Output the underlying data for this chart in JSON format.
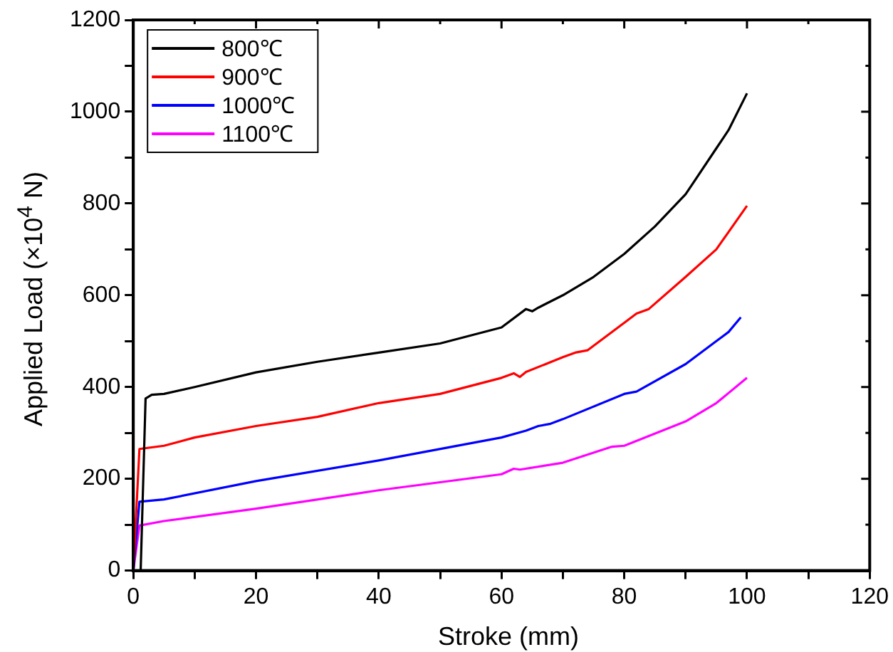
{
  "chart_data": {
    "type": "line",
    "xlabel": "Stroke (mm)",
    "ylabel": "Applied Load (×10$^{4}$ N)",
    "xlim": [
      0,
      120
    ],
    "ylim": [
      0,
      1200
    ],
    "xticks": [
      0,
      {
        "value": 10,
        "label": null
      },
      20,
      {
        "value": 30,
        "label": null
      },
      40,
      {
        "value": 50,
        "label": null
      },
      60,
      {
        "value": 70,
        "label": null
      },
      80,
      {
        "value": 90,
        "label": null
      },
      100,
      {
        "value": 110,
        "label": null
      },
      120
    ],
    "yticks": [
      0,
      {
        "value": 100,
        "label": null
      },
      200,
      {
        "value": 300,
        "label": null
      },
      400,
      {
        "value": 500,
        "label": null
      },
      600,
      {
        "value": 700,
        "label": null
      },
      800,
      {
        "value": 900,
        "label": null
      },
      1000,
      {
        "value": 1100,
        "label": null
      },
      1200
    ],
    "grid": false,
    "legend": "top left",
    "marker": "none",
    "line_style": "solid",
    "series": [
      {
        "name": "800℃",
        "color": "#000000",
        "x": [
          1.2,
          2,
          3,
          5,
          10,
          20,
          30,
          40,
          50,
          60,
          64,
          65,
          66,
          70,
          75,
          80,
          85,
          90,
          95,
          97,
          100
        ],
        "values": [
          0,
          375,
          383,
          385,
          400,
          432,
          455,
          475,
          495,
          530,
          570,
          565,
          573,
          600,
          640,
          690,
          750,
          820,
          920,
          960,
          1040
        ]
      },
      {
        "name": "900℃",
        "color": "#ff0000",
        "x": [
          0,
          1,
          5,
          10,
          20,
          30,
          40,
          50,
          60,
          62,
          63,
          64,
          70,
          72,
          74,
          80,
          82,
          84,
          90,
          95,
          100
        ],
        "values": [
          0,
          265,
          272,
          290,
          315,
          335,
          365,
          385,
          420,
          430,
          422,
          433,
          465,
          475,
          480,
          540,
          560,
          570,
          640,
          700,
          795
        ]
      },
      {
        "name": "1000℃",
        "color": "#0000ff",
        "x": [
          0,
          1,
          5,
          20,
          40,
          60,
          64,
          66,
          68,
          70,
          80,
          82,
          90,
          95,
          97,
          99
        ],
        "values": [
          0,
          150,
          155,
          195,
          240,
          290,
          305,
          315,
          320,
          330,
          385,
          390,
          450,
          500,
          520,
          552
        ]
      },
      {
        "name": "1100℃",
        "color": "#ff00ff",
        "x": [
          0,
          1,
          5,
          20,
          40,
          60,
          62,
          63,
          70,
          78,
          80,
          90,
          95,
          100
        ],
        "values": [
          0,
          98,
          108,
          135,
          175,
          210,
          222,
          220,
          235,
          270,
          272,
          325,
          365,
          420
        ]
      }
    ]
  }
}
